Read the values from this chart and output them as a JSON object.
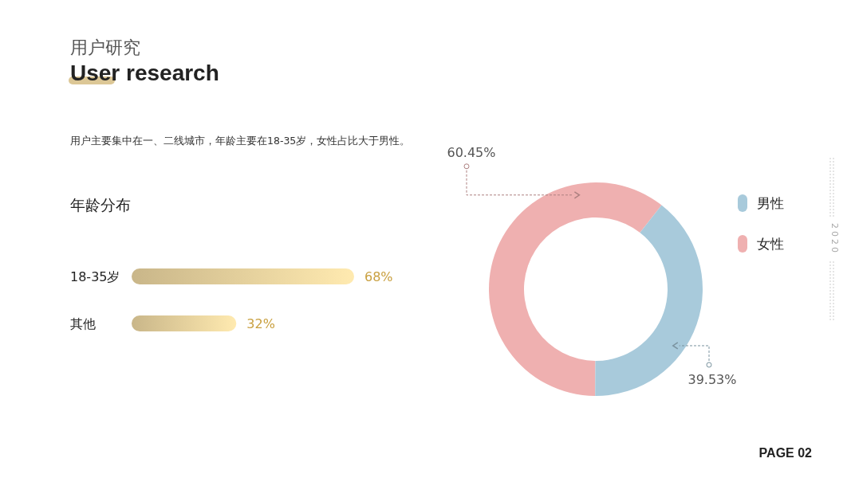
{
  "chart_data": [
    {
      "type": "bar",
      "orientation": "horizontal",
      "title": "年龄分布",
      "categories": [
        "18-35岁",
        "其他"
      ],
      "values": [
        68,
        32
      ],
      "value_labels": [
        "68%",
        "32%"
      ],
      "color": "#dcc796",
      "annotations": [
        "用户研究",
        "User research",
        "用户主要集中在一、二线城市，年龄主要在18-35岁，女性占比大于男性。",
        "2020",
        "PAGE 02"
      ]
    },
    {
      "type": "donut",
      "categories": [
        "男性",
        "女性"
      ],
      "values": [
        39.53,
        60.45
      ],
      "value_labels": [
        "39.53%",
        "60.45%"
      ],
      "colors": [
        "#a8cadb",
        "#efb0b0"
      ],
      "legend": "top right"
    }
  ]
}
